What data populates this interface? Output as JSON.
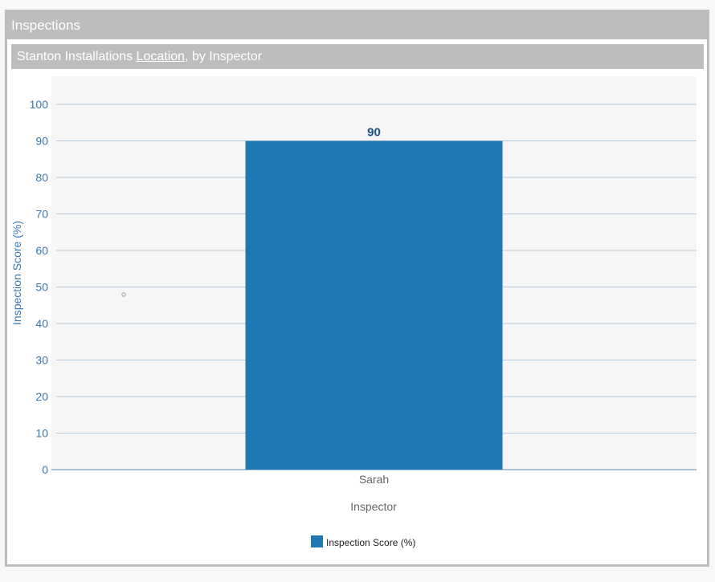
{
  "panel": {
    "title": "Inspections"
  },
  "subtitle": {
    "prefix": "Stanton Installations",
    "link": "Location",
    "suffix": ", by Inspector"
  },
  "chart_data": {
    "type": "bar",
    "categories": [
      "Sarah"
    ],
    "series": [
      {
        "name": "Inspection Score (%)",
        "values": [
          90
        ],
        "color": "#1f77b4"
      }
    ],
    "xlabel": "Inspector",
    "ylabel": "Inspection Score (%)",
    "ylim": [
      0,
      100
    ],
    "yticks": [
      0,
      10,
      20,
      30,
      40,
      50,
      60,
      70,
      80,
      90,
      100
    ],
    "data_labels": true,
    "grid": true,
    "legend": "bottom-center"
  }
}
